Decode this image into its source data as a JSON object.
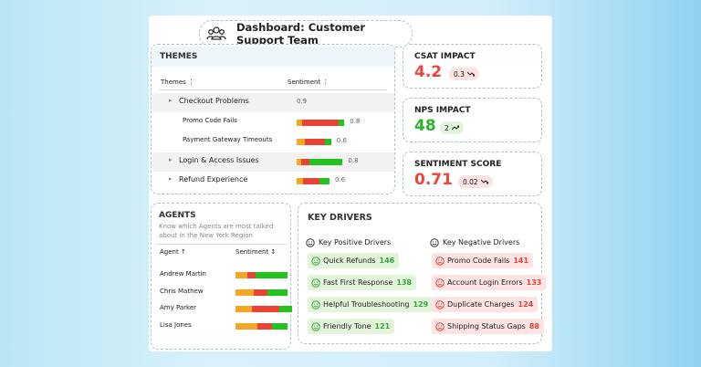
{
  "header": {
    "title": "Dashboard: Customer Support Team"
  },
  "themes": {
    "title": "THEMES",
    "columns": [
      "Themes",
      "Sentiment"
    ],
    "rows": [
      {
        "name": "Checkout Problems",
        "score": 0.9,
        "children": [
          {
            "name": "Promo Code Fails",
            "score": 0.8,
            "mix": [
              7,
              44,
              7
            ]
          },
          {
            "name": "Payment Gateway Timeouts",
            "score": 0.6,
            "mix": [
              10,
              24,
              8
            ]
          }
        ]
      },
      {
        "name": "Login & Access Issues",
        "score": 0.8,
        "mix": [
          6,
          10,
          40
        ]
      },
      {
        "name": "Refund Experience",
        "score": 0.6,
        "mix": [
          8,
          20,
          12
        ]
      }
    ]
  },
  "kpis": [
    {
      "label": "CSAT IMPACT",
      "value": 4.2,
      "change": 0.3,
      "trend": "down",
      "color": "#e8453c"
    },
    {
      "label": "NPS IMPACT",
      "value": 48,
      "change": 2,
      "trend": "up",
      "color": "#2bb52b"
    },
    {
      "label": "SENTIMENT SCORE",
      "value": 0.71,
      "change": 0.02,
      "trend": "down",
      "color": "#e8453c"
    }
  ],
  "agents": {
    "title": "AGENTS",
    "subtitle": "Know which Agents are most talked about in the New York Region",
    "columns": [
      "Agent",
      "Sentiment"
    ],
    "rows": [
      {
        "name": "Andrew Martin",
        "mix": [
          12,
          8,
          32
        ]
      },
      {
        "name": "Chris Mathew",
        "mix": [
          18,
          14,
          20
        ]
      },
      {
        "name": "Amy Parker",
        "mix": [
          16,
          28,
          12
        ]
      },
      {
        "name": "Lisa Jones",
        "mix": [
          22,
          14,
          16
        ]
      }
    ]
  },
  "drivers": {
    "title": "KEY DRIVERS",
    "positive": {
      "title": "Key Positive Drivers",
      "items": [
        {
          "name": "Quick Refunds",
          "count": 146
        },
        {
          "name": "Fast First Response",
          "count": 138
        },
        {
          "name": "Helpful Troubleshooting",
          "count": 129
        },
        {
          "name": "Friendly Tone",
          "count": 121
        }
      ]
    },
    "negative": {
      "title": "Key Negative Drivers",
      "items": [
        {
          "name": "Promo Code Fails",
          "count": 141
        },
        {
          "name": "Account Login Errors",
          "count": 133
        },
        {
          "name": "Duplicate Charges",
          "count": 124
        },
        {
          "name": "Shipping Status Gaps",
          "count": 88
        }
      ]
    }
  }
}
